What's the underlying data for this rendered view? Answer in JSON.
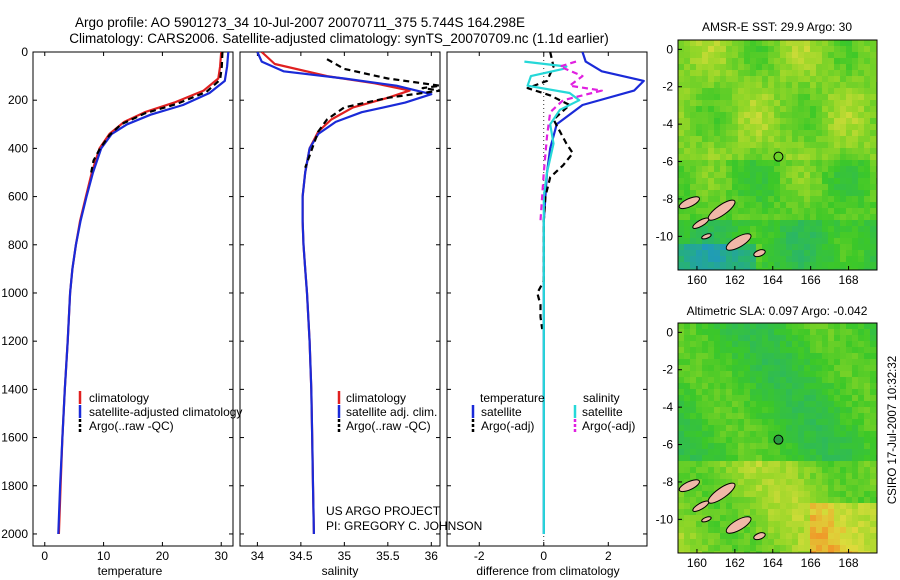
{
  "header": {
    "title_line1": "Argo profile: AO 5901273_34 10-Jul-2007 20070711_375 5.744S 164.298E",
    "title_line2": "Climatology: CARS2006. Satellite-adjusted climatology: synTS_20070709.nc (1.1d earlier)"
  },
  "side_label": "CSIRO 17-Jul-2007 10:32:32",
  "credit": {
    "line1": "US ARGO PROJECT",
    "line2": "PI: GREGORY C. JOHNSON"
  },
  "colors": {
    "climatology": "#e02020",
    "satellite": "#1a2ad8",
    "argo": "#000000",
    "sal_satellite": "#26d8d8",
    "sal_argo": "#e020e0"
  },
  "chart_data": [
    {
      "id": "temperature",
      "type": "line",
      "xlabel": "temperature",
      "ylabel": "",
      "xlim": [
        -2,
        32
      ],
      "ylim": [
        0,
        2050
      ],
      "y_reversed": true,
      "xticks": [
        0,
        10,
        20,
        30
      ],
      "yticks": [
        0,
        200,
        400,
        600,
        800,
        1000,
        1200,
        1400,
        1600,
        1800,
        2000
      ],
      "legend": [
        "climatology",
        "satellite-adjusted climatology",
        "Argo(..raw -QC)"
      ],
      "series": [
        {
          "name": "climatology",
          "points": [
            [
              30.0,
              0
            ],
            [
              29.8,
              60
            ],
            [
              29.5,
              110
            ],
            [
              27,
              160
            ],
            [
              22,
              210
            ],
            [
              17,
              250
            ],
            [
              13.5,
              290
            ],
            [
              11,
              340
            ],
            [
              9.3,
              400
            ],
            [
              8,
              500
            ],
            [
              7,
              600
            ],
            [
              6,
              700
            ],
            [
              5.3,
              800
            ],
            [
              4.7,
              900
            ],
            [
              4.3,
              1000
            ],
            [
              3.9,
              1200
            ],
            [
              3.4,
              1400
            ],
            [
              3.0,
              1600
            ],
            [
              2.7,
              1800
            ],
            [
              2.4,
              2000
            ]
          ]
        },
        {
          "name": "satellite-adjusted climatology",
          "points": [
            [
              31.2,
              0
            ],
            [
              31.0,
              60
            ],
            [
              30.6,
              120
            ],
            [
              28,
              170
            ],
            [
              23.5,
              220
            ],
            [
              18,
              260
            ],
            [
              14,
              300
            ],
            [
              11.4,
              340
            ],
            [
              9.6,
              400
            ],
            [
              8.2,
              500
            ],
            [
              7.1,
              600
            ],
            [
              6.1,
              700
            ],
            [
              5.3,
              800
            ],
            [
              4.7,
              900
            ],
            [
              4.3,
              1000
            ],
            [
              3.9,
              1200
            ],
            [
              3.4,
              1400
            ],
            [
              3.0,
              1600
            ],
            [
              2.6,
              1800
            ],
            [
              2.3,
              2000
            ]
          ]
        },
        {
          "name": "Argo(..raw -QC)",
          "points": [
            [
              30.2,
              0
            ],
            [
              30.1,
              60
            ],
            [
              29.8,
              115
            ],
            [
              27.5,
              165
            ],
            [
              22.5,
              215
            ],
            [
              17,
              255
            ],
            [
              13,
              300
            ],
            [
              11,
              345
            ],
            [
              9.4,
              400
            ],
            [
              8.3,
              450
            ],
            [
              7.9,
              500
            ]
          ]
        }
      ]
    },
    {
      "id": "salinity",
      "type": "line",
      "xlabel": "salinity",
      "ylabel": "",
      "xlim": [
        33.8,
        36.1
      ],
      "ylim": [
        0,
        2050
      ],
      "y_reversed": true,
      "xticks": [
        34,
        34.5,
        35,
        35.5,
        36
      ],
      "legend": [
        "climatology",
        "satellite adj. clim.",
        "Argo(..raw -QC)"
      ],
      "series": [
        {
          "name": "climatology",
          "points": [
            [
              34.05,
              0
            ],
            [
              34.2,
              50
            ],
            [
              34.8,
              100
            ],
            [
              35.35,
              130
            ],
            [
              35.75,
              160
            ],
            [
              35.5,
              190
            ],
            [
              35.1,
              230
            ],
            [
              34.85,
              280
            ],
            [
              34.7,
              330
            ],
            [
              34.6,
              400
            ],
            [
              34.55,
              500
            ],
            [
              34.52,
              600
            ],
            [
              34.52,
              700
            ],
            [
              34.53,
              800
            ],
            [
              34.55,
              900
            ],
            [
              34.57,
              1000
            ],
            [
              34.6,
              1200
            ],
            [
              34.62,
              1400
            ],
            [
              34.63,
              1600
            ],
            [
              34.64,
              1800
            ],
            [
              34.65,
              2000
            ]
          ]
        },
        {
          "name": "satellite adj. clim.",
          "points": [
            [
              34.0,
              0
            ],
            [
              34.05,
              40
            ],
            [
              34.3,
              80
            ],
            [
              35.0,
              110
            ],
            [
              35.6,
              140
            ],
            [
              36.0,
              175
            ],
            [
              35.7,
              210
            ],
            [
              35.2,
              250
            ],
            [
              34.9,
              290
            ],
            [
              34.7,
              340
            ],
            [
              34.6,
              400
            ],
            [
              34.55,
              500
            ],
            [
              34.52,
              600
            ],
            [
              34.52,
              700
            ],
            [
              34.53,
              800
            ],
            [
              34.55,
              900
            ],
            [
              34.57,
              1000
            ],
            [
              34.6,
              1200
            ],
            [
              34.62,
              1400
            ],
            [
              34.63,
              1600
            ],
            [
              34.64,
              1800
            ],
            [
              34.65,
              2000
            ]
          ]
        },
        {
          "name": "Argo(..raw -QC)",
          "points": [
            [
              34.8,
              30
            ],
            [
              35.0,
              70
            ],
            [
              35.5,
              110
            ],
            [
              36.1,
              140
            ],
            [
              35.9,
              150
            ],
            [
              36.1,
              160
            ],
            [
              35.5,
              190
            ],
            [
              35.0,
              230
            ],
            [
              34.8,
              280
            ],
            [
              34.7,
              330
            ],
            [
              34.65,
              380
            ],
            [
              34.6,
              430
            ],
            [
              34.55,
              480
            ]
          ]
        }
      ]
    },
    {
      "id": "difference",
      "type": "line",
      "xlabel": "difference from climatology",
      "ylabel": "",
      "xlim": [
        -3,
        3.2
      ],
      "ylim": [
        0,
        2050
      ],
      "y_reversed": true,
      "xticks": [
        -2,
        0,
        2
      ],
      "legend_headers": [
        "temperature",
        "salinity"
      ],
      "legend": [
        "satellite",
        "Argo(-adj)",
        "satellite",
        "Argo(-adj)"
      ],
      "series": [
        {
          "name": "temperature satellite",
          "points": [
            [
              1.2,
              0
            ],
            [
              1.3,
              40
            ],
            [
              1.8,
              80
            ],
            [
              3.1,
              120
            ],
            [
              2.8,
              160
            ],
            [
              1.2,
              220
            ],
            [
              0.4,
              300
            ],
            [
              0.2,
              400
            ],
            [
              0.1,
              500
            ],
            [
              0.05,
              600
            ],
            [
              0,
              700
            ],
            [
              0,
              1000
            ],
            [
              0,
              2000
            ]
          ]
        },
        {
          "name": "temperature Argo(-adj)",
          "points": [
            [
              0.2,
              0
            ],
            [
              0.3,
              60
            ],
            [
              0.1,
              120
            ],
            [
              -0.5,
              150
            ],
            [
              0.2,
              180
            ],
            [
              0.8,
              220
            ],
            [
              0.3,
              280
            ],
            [
              0.7,
              380
            ],
            [
              0.9,
              420
            ],
            [
              0.6,
              470
            ],
            [
              0.2,
              520
            ],
            [
              0.05,
              600
            ],
            [
              0,
              700
            ],
            [
              0,
              950
            ],
            [
              -0.2,
              1000
            ],
            [
              -0.1,
              1050
            ],
            [
              -0.1,
              1100
            ],
            [
              -0.05,
              1150
            ]
          ]
        },
        {
          "name": "salinity satellite",
          "points": [
            [
              -0.6,
              40
            ],
            [
              0.7,
              60
            ],
            [
              0.6,
              70
            ],
            [
              -0.4,
              100
            ],
            [
              -0.5,
              140
            ],
            [
              0.8,
              170
            ],
            [
              1.1,
              200
            ],
            [
              0.5,
              240
            ],
            [
              0.2,
              300
            ],
            [
              0.3,
              380
            ],
            [
              0.1,
              500
            ],
            [
              0,
              600
            ],
            [
              0,
              800
            ],
            [
              0,
              2000
            ]
          ]
        },
        {
          "name": "salinity Argo(-adj)",
          "points": [
            [
              1.0,
              40
            ],
            [
              0.5,
              60
            ],
            [
              1.2,
              100
            ],
            [
              0.8,
              140
            ],
            [
              1.8,
              160
            ],
            [
              0.6,
              200
            ],
            [
              0.2,
              250
            ],
            [
              0.1,
              350
            ],
            [
              0,
              500
            ],
            [
              -0.1,
              700
            ]
          ]
        }
      ]
    },
    {
      "id": "sst_map",
      "type": "heatmap",
      "title": "AMSR-E SST: 29.9 Argo: 30",
      "xlim": [
        159,
        169.5
      ],
      "ylim": [
        -11.8,
        0.5
      ],
      "xticks": [
        160,
        162,
        164,
        166,
        168
      ],
      "yticks": [
        0,
        -2,
        -4,
        -6,
        -8,
        -10
      ],
      "marker": [
        164.3,
        -5.74
      ]
    },
    {
      "id": "sla_map",
      "type": "heatmap",
      "title": "Altimetric SLA: 0.097 Argo: -0.042",
      "xlim": [
        159,
        169.5
      ],
      "ylim": [
        -11.8,
        0.5
      ],
      "xticks": [
        160,
        162,
        164,
        166,
        168
      ],
      "yticks": [
        0,
        -2,
        -4,
        -6,
        -8,
        -10
      ],
      "marker": [
        164.3,
        -5.74
      ]
    }
  ]
}
